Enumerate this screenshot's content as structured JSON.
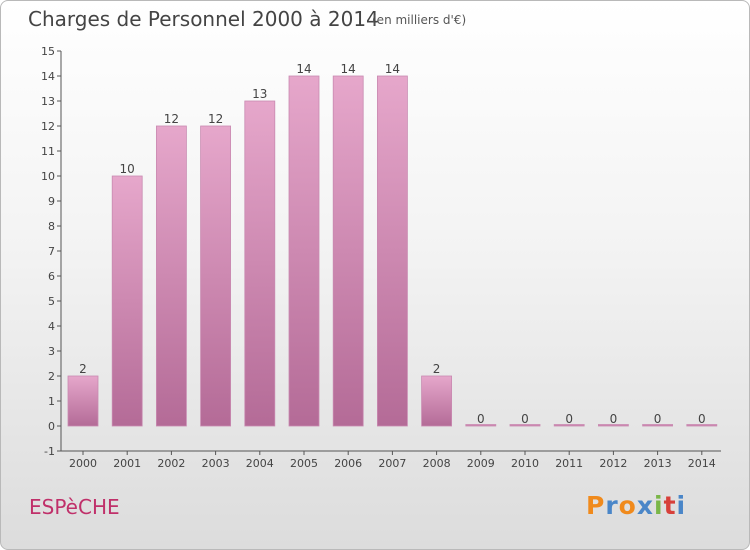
{
  "header": {
    "title": "Charges de Personnel 2000 à 2014",
    "subtitle": "(en milliers d'€)"
  },
  "footer": {
    "commune": "ESPèCHE",
    "logo": {
      "letters": [
        "P",
        "r",
        "o",
        "x",
        "i",
        "t",
        "i"
      ],
      "colors": [
        "#f08a1c",
        "#4a86c8",
        "#f08a1c",
        "#4a86c8",
        "#7ab648",
        "#d7403a",
        "#4a86c8"
      ]
    }
  },
  "chart_data": {
    "type": "bar",
    "title": "Charges de Personnel 2000 à 2014",
    "subtitle": "(en milliers d'€)",
    "categories": [
      "2000",
      "2001",
      "2002",
      "2003",
      "2004",
      "2005",
      "2006",
      "2007",
      "2008",
      "2009",
      "2010",
      "2011",
      "2012",
      "2013",
      "2014"
    ],
    "values": [
      2,
      10,
      12,
      12,
      13,
      14,
      14,
      14,
      2,
      0,
      0,
      0,
      0,
      0,
      0
    ],
    "ylim": [
      -1,
      15
    ],
    "y_ticks": [
      -1,
      0,
      1,
      2,
      3,
      4,
      5,
      6,
      7,
      8,
      9,
      10,
      11,
      12,
      13,
      14,
      15
    ],
    "grid": false,
    "bar_color": "#d98bb8",
    "bar_color_dark": "#b46b97"
  }
}
